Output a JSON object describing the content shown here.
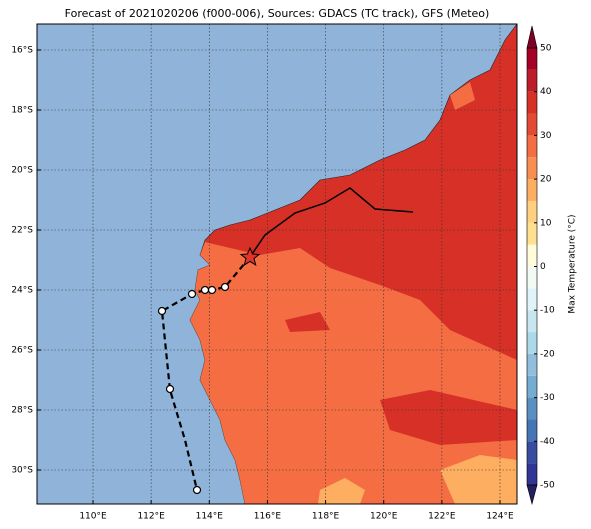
{
  "title": "Forecast of 2021020206 (f000-006), Sources: GDACS (TC track), GFS (Meteo)",
  "map": {
    "xticks": [
      {
        "value": 110,
        "label": "110°E"
      },
      {
        "value": 112,
        "label": "112°E"
      },
      {
        "value": 114,
        "label": "114°E"
      },
      {
        "value": 116,
        "label": "116°E"
      },
      {
        "value": 118,
        "label": "118°E"
      },
      {
        "value": 120,
        "label": "120°E"
      },
      {
        "value": 122,
        "label": "122°E"
      },
      {
        "value": 124,
        "label": "124°E"
      }
    ],
    "yticks": [
      {
        "value": -16,
        "label": "16°S"
      },
      {
        "value": -18,
        "label": "18°S"
      },
      {
        "value": -20,
        "label": "20°S"
      },
      {
        "value": -22,
        "label": "22°S"
      },
      {
        "value": -24,
        "label": "24°S"
      },
      {
        "value": -26,
        "label": "26°S"
      },
      {
        "value": -28,
        "label": "28°S"
      },
      {
        "value": -30,
        "label": "30°S"
      }
    ],
    "colorbar": {
      "label": "Max Temperature (°C)",
      "ticks": [
        50,
        40,
        30,
        20,
        10,
        0,
        -10,
        -20,
        -30,
        -40,
        -50
      ]
    }
  }
}
